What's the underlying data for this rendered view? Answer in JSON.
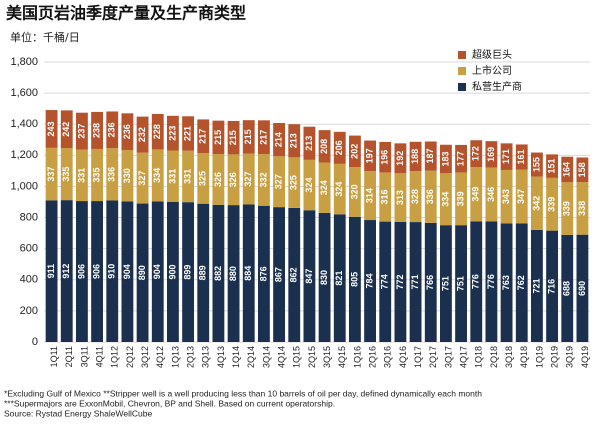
{
  "chart_data": {
    "type": "stacked_bar",
    "title": "美国页岩油季度产量及生产商类型",
    "subtitle": "单位：千桶/日",
    "categories": [
      "1Q11",
      "2Q11",
      "3Q11",
      "4Q11",
      "1Q12",
      "2Q12",
      "3Q12",
      "4Q12",
      "1Q13",
      "2Q13",
      "3Q13",
      "4Q13",
      "1Q14",
      "2Q14",
      "3Q14",
      "4Q14",
      "1Q15",
      "2Q15",
      "3Q15",
      "4Q15",
      "1Q16",
      "2Q16",
      "3Q16",
      "4Q16",
      "1Q17",
      "2Q17",
      "3Q17",
      "4Q17",
      "1Q18",
      "2Q18",
      "3Q18",
      "4Q18",
      "1Q19",
      "2Q19",
      "3Q19",
      "4Q19"
    ],
    "series": [
      {
        "name": "私营生产商",
        "color": "#1b2f4e",
        "values": [
          911,
          912,
          906,
          906,
          910,
          904,
          890,
          904,
          900,
          899,
          889,
          882,
          880,
          884,
          876,
          867,
          862,
          847,
          830,
          821,
          805,
          784,
          774,
          772,
          771,
          766,
          751,
          751,
          776,
          776,
          763,
          762,
          721,
          716,
          688,
          690
        ]
      },
      {
        "name": "上市公司",
        "color": "#c8a043",
        "values": [
          337,
          335,
          331,
          335,
          336,
          330,
          327,
          334,
          331,
          331,
          325,
          326,
          326,
          327,
          332,
          327,
          325,
          324,
          324,
          324,
          320,
          314,
          316,
          313,
          328,
          336,
          334,
          339,
          349,
          346,
          343,
          347,
          342,
          339,
          339,
          338
        ]
      },
      {
        "name": "超级巨头",
        "color": "#b4532c",
        "values": [
          243,
          242,
          237,
          238,
          236,
          236,
          232,
          228,
          223,
          221,
          217,
          215,
          215,
          215,
          217,
          214,
          213,
          213,
          208,
          206,
          202,
          197,
          196,
          192,
          188,
          187,
          183,
          177,
          172,
          169,
          171,
          161,
          155,
          151,
          164,
          158
        ]
      }
    ],
    "ylim": [
      0,
      1800
    ],
    "yticks": [
      0,
      200,
      400,
      600,
      800,
      {
        "value": 1000,
        "label": "1,000"
      },
      {
        "value": 1200,
        "label": "1,200"
      },
      {
        "value": 1400,
        "label": "1,400"
      },
      {
        "value": 1600,
        "label": "1,600"
      },
      {
        "value": 1800,
        "label": "1,800"
      }
    ],
    "grid": true,
    "legend": "top-right",
    "notes": [
      "*Excluding Gulf of Mexico **Stripper well is a well producing less than 10 barrels of oil per day, defined dynamically each month",
      "***Supermajors are ExxonMobil, Chevron, BP and Shell. Based on current operatorship.",
      "Source: Rystad Energy ShaleWellCube"
    ]
  }
}
